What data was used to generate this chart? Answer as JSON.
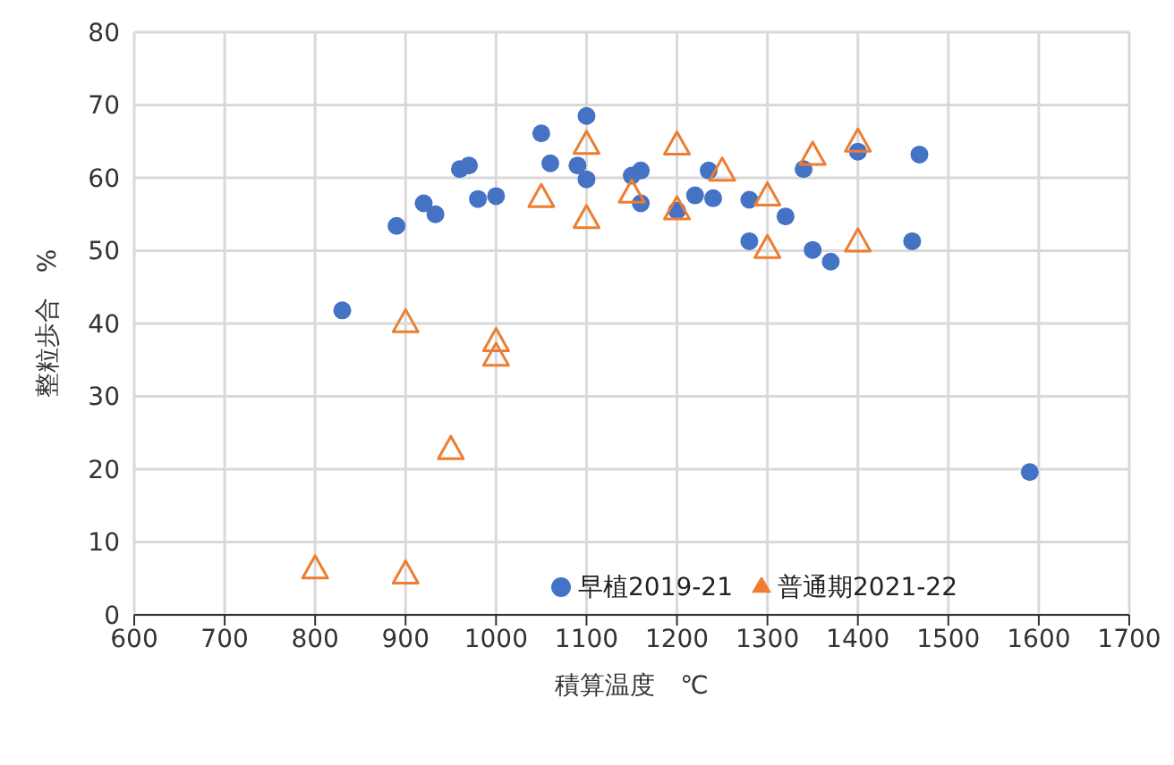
{
  "chart_data": {
    "type": "scatter",
    "xlabel": "積算温度　℃",
    "ylabel": "整粒歩合　%",
    "xlim": [
      600,
      1700
    ],
    "xticks": [
      600,
      700,
      800,
      900,
      1000,
      1100,
      1200,
      1300,
      1400,
      1500,
      1600,
      1700
    ],
    "ylim": [
      0,
      80
    ],
    "yticks": [
      0,
      10,
      20,
      30,
      40,
      50,
      60,
      70,
      80
    ],
    "grid": true,
    "legend": "bottom right",
    "series": [
      {
        "name": "早植2019-21",
        "color": "#4472c4",
        "marker": "circle",
        "x": [
          830,
          890,
          920,
          933,
          960,
          970,
          980,
          1000,
          1050,
          1060,
          1090,
          1100,
          1100,
          1150,
          1160,
          1160,
          1200,
          1220,
          1235,
          1240,
          1280,
          1280,
          1320,
          1340,
          1350,
          1370,
          1400,
          1460,
          1468,
          1590
        ],
        "values": [
          41.8,
          53.4,
          56.5,
          55,
          61.2,
          61.7,
          57.1,
          57.5,
          66.1,
          62,
          61.7,
          68.5,
          59.8,
          60.3,
          61,
          56.5,
          55.5,
          57.6,
          61,
          57.2,
          57,
          51.3,
          54.7,
          61.2,
          50.1,
          48.5,
          63.6,
          51.3,
          63.2,
          19.6
        ]
      },
      {
        "name": "普通期2021-22",
        "color": "#ed7d31",
        "marker": "triangle",
        "x": [
          800,
          900,
          900,
          950,
          1000,
          1000,
          1050,
          1100,
          1100,
          1150,
          1200,
          1200,
          1250,
          1300,
          1300,
          1350,
          1400,
          1400
        ],
        "values": [
          6.4,
          40.2,
          5.7,
          22.8,
          37.6,
          35.6,
          57.4,
          64.7,
          54.5,
          58,
          64.6,
          55.7,
          61,
          57.6,
          50.4,
          63.2,
          65,
          51.3
        ]
      }
    ]
  }
}
